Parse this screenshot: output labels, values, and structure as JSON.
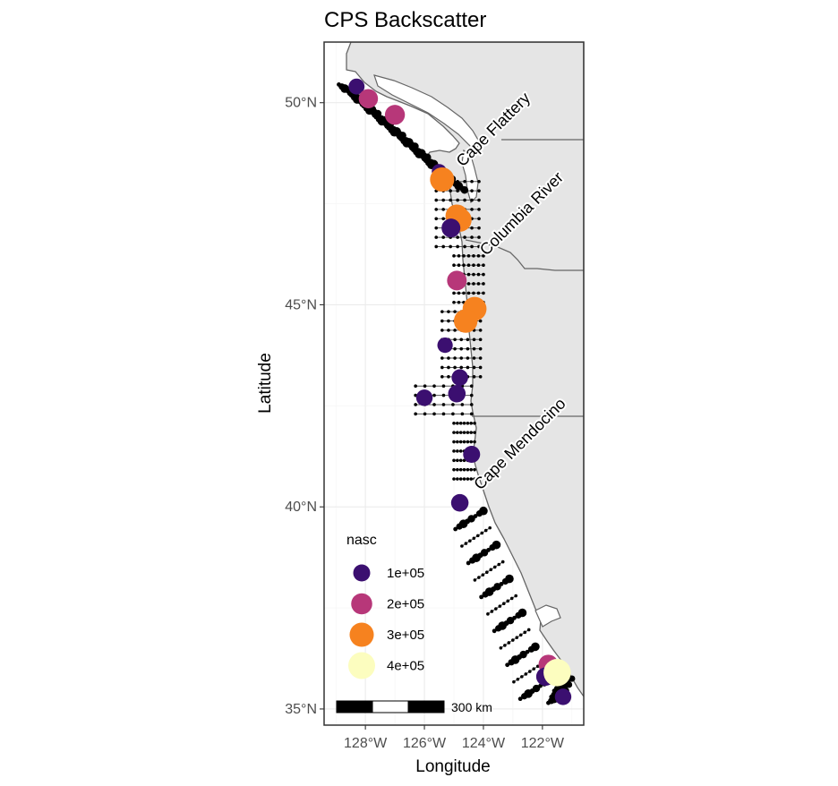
{
  "map": {
    "title": "CPS Backscatter",
    "xlabel": "Longitude",
    "ylabel": "Latitude",
    "x_ticks": [
      {
        "lon": -128,
        "label": "128°W"
      },
      {
        "lon": -126,
        "label": "126°W"
      },
      {
        "lon": -124,
        "label": "124°W"
      },
      {
        "lon": -122,
        "label": "122°W"
      }
    ],
    "y_ticks": [
      {
        "lat": 50,
        "label": "50°N"
      },
      {
        "lat": 45,
        "label": "45°N"
      },
      {
        "lat": 40,
        "label": "40°N"
      },
      {
        "lat": 35,
        "label": "35°N"
      }
    ],
    "xlim": [
      -129.4,
      -120.6
    ],
    "ylim": [
      34.6,
      51.5
    ],
    "grid": true,
    "land_color": "#e5e5e5",
    "border_color": "#666666",
    "place_labels": [
      {
        "text": "Cape Flattery",
        "lon": -124.7,
        "lat": 48.4
      },
      {
        "text": "Columbia River",
        "lon": -123.9,
        "lat": 46.2
      },
      {
        "text": "Cape Mendocino",
        "lon": -124.1,
        "lat": 40.4
      }
    ],
    "legend": {
      "title": "nasc",
      "position": "bottom-left inside",
      "entries": [
        {
          "label": "1e+05",
          "value": 100000,
          "color": "#3b0f70"
        },
        {
          "label": "2e+05",
          "value": 200000,
          "color": "#b73779"
        },
        {
          "label": "3e+05",
          "value": 300000,
          "color": "#f6821f"
        },
        {
          "label": "4e+05",
          "value": 400000,
          "color": "#fcfdbf"
        }
      ]
    },
    "scale_bar": {
      "label": "300 km",
      "segments": 3
    }
  },
  "chart_data": {
    "type": "scatter",
    "title": "CPS Backscatter",
    "xlabel": "Longitude",
    "ylabel": "Latitude",
    "xlim": [
      -129.4,
      -120.6
    ],
    "ylim": [
      34.6,
      51.5
    ],
    "size_color_variable": "nasc",
    "points": [
      {
        "lon": -128.3,
        "lat": 50.4,
        "nasc": 80000
      },
      {
        "lon": -127.9,
        "lat": 50.1,
        "nasc": 150000
      },
      {
        "lon": -127.0,
        "lat": 49.7,
        "nasc": 170000
      },
      {
        "lon": -125.5,
        "lat": 48.3,
        "nasc": 60000
      },
      {
        "lon": -125.4,
        "lat": 48.1,
        "nasc": 300000
      },
      {
        "lon": -124.9,
        "lat": 47.2,
        "nasc": 250000
      },
      {
        "lon": -124.8,
        "lat": 47.1,
        "nasc": 280000
      },
      {
        "lon": -125.1,
        "lat": 46.9,
        "nasc": 140000
      },
      {
        "lon": -124.9,
        "lat": 45.6,
        "nasc": 160000
      },
      {
        "lon": -124.3,
        "lat": 44.9,
        "nasc": 290000
      },
      {
        "lon": -124.6,
        "lat": 44.6,
        "nasc": 280000
      },
      {
        "lon": -125.3,
        "lat": 44.0,
        "nasc": 70000
      },
      {
        "lon": -124.8,
        "lat": 43.2,
        "nasc": 90000
      },
      {
        "lon": -124.9,
        "lat": 42.8,
        "nasc": 110000
      },
      {
        "lon": -126.0,
        "lat": 42.7,
        "nasc": 90000
      },
      {
        "lon": -124.4,
        "lat": 41.3,
        "nasc": 100000
      },
      {
        "lon": -124.8,
        "lat": 40.1,
        "nasc": 110000
      },
      {
        "lon": -121.8,
        "lat": 36.1,
        "nasc": 160000
      },
      {
        "lon": -121.9,
        "lat": 35.8,
        "nasc": 130000
      },
      {
        "lon": -121.5,
        "lat": 35.9,
        "nasc": 420000
      },
      {
        "lon": -121.3,
        "lat": 35.3,
        "nasc": 90000
      }
    ]
  }
}
